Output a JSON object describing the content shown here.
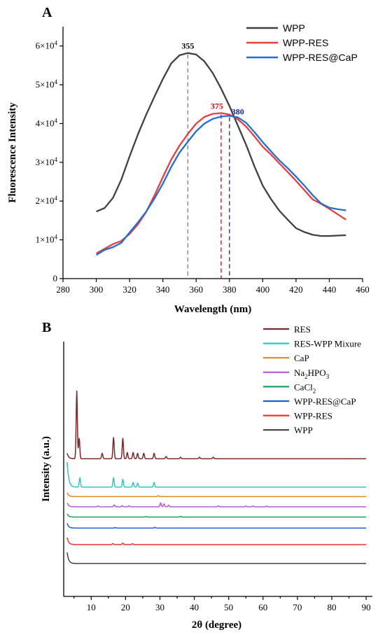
{
  "chart_data": [
    {
      "panel": "A",
      "type": "line",
      "xlabel": "Wavelength (nm)",
      "ylabel": "Fluorescence Intensity",
      "xlim": [
        280,
        460
      ],
      "ylim": [
        0,
        65000
      ],
      "xticks": [
        "280",
        "300",
        "320",
        "340",
        "360",
        "380",
        "400",
        "420",
        "440",
        "460"
      ],
      "yticks": [
        {
          "value": 0,
          "mant": "0",
          "exp": ""
        },
        {
          "value": 10000,
          "mant": "1×10",
          "exp": "4"
        },
        {
          "value": 20000,
          "mant": "2×10",
          "exp": "4"
        },
        {
          "value": 30000,
          "mant": "3×10",
          "exp": "4"
        },
        {
          "value": 40000,
          "mant": "4×10",
          "exp": "4"
        },
        {
          "value": 50000,
          "mant": "5×10",
          "exp": "4"
        },
        {
          "value": 60000,
          "mant": "6×10",
          "exp": "4"
        }
      ],
      "legend_position": "top-right",
      "series": [
        {
          "name": "WPP",
          "color": "#404040",
          "x": [
            300,
            305,
            310,
            315,
            320,
            325,
            330,
            335,
            340,
            345,
            350,
            355,
            360,
            365,
            370,
            375,
            380,
            385,
            390,
            395,
            400,
            405,
            410,
            415,
            420,
            425,
            430,
            435,
            440,
            445,
            450
          ],
          "y": [
            17300,
            18200,
            20800,
            25500,
            31500,
            37200,
            42300,
            47000,
            51500,
            55500,
            57600,
            58200,
            57800,
            56000,
            53000,
            49000,
            44500,
            39500,
            34500,
            29000,
            24000,
            20500,
            17500,
            15200,
            13000,
            12000,
            11300,
            11000,
            11000,
            11100,
            11200
          ]
        },
        {
          "name": "WPP-RES",
          "color": "#ee3b3b",
          "x": [
            300,
            305,
            310,
            315,
            320,
            325,
            330,
            335,
            340,
            345,
            350,
            355,
            360,
            365,
            370,
            375,
            380,
            385,
            390,
            395,
            400,
            405,
            410,
            415,
            420,
            425,
            430,
            435,
            440,
            445,
            450
          ],
          "y": [
            6500,
            7700,
            8900,
            9700,
            11500,
            14000,
            17200,
            21500,
            26200,
            30700,
            34300,
            37300,
            40000,
            41700,
            42500,
            42700,
            42300,
            41100,
            39200,
            36700,
            34000,
            32000,
            29700,
            27500,
            25200,
            22800,
            20400,
            19300,
            18000,
            16600,
            15200
          ]
        },
        {
          "name": "WPP-RES@CaP",
          "color": "#1f6fd6",
          "x": [
            300,
            305,
            310,
            315,
            320,
            325,
            330,
            335,
            340,
            345,
            350,
            355,
            360,
            365,
            370,
            375,
            380,
            385,
            390,
            395,
            400,
            405,
            410,
            415,
            420,
            425,
            430,
            435,
            440,
            445,
            450
          ],
          "y": [
            6100,
            7400,
            8100,
            9200,
            11900,
            14500,
            17300,
            20700,
            24500,
            28800,
            32500,
            35300,
            38000,
            40000,
            41200,
            41800,
            42000,
            41600,
            40200,
            37800,
            35200,
            32800,
            30500,
            28500,
            26300,
            24000,
            21500,
            19400,
            18300,
            17900,
            17600
          ]
        }
      ],
      "peaks": [
        {
          "x": 355,
          "label": "355",
          "color": "#808080",
          "y": 58200
        },
        {
          "x": 375,
          "label": "375",
          "color": "#d4000f",
          "y": 42700
        },
        {
          "x": 380,
          "label": "380",
          "color": "#1028a8",
          "y": 42000
        }
      ]
    },
    {
      "panel": "B",
      "type": "line",
      "xlabel": "2θ (degree)",
      "ylabel": "Intensity (a.u.)",
      "xlim": [
        2,
        91
      ],
      "xticks": [
        "10",
        "20",
        "30",
        "40",
        "50",
        "60",
        "70",
        "80",
        "90"
      ],
      "legend_position": "top-right",
      "series": [
        {
          "name": "RES",
          "color": "#7a2828",
          "offset": 9.0,
          "peaks": [
            [
              3.0,
              0.35
            ],
            [
              5.8,
              4.3
            ],
            [
              6.5,
              1.3
            ],
            [
              13.2,
              0.35
            ],
            [
              16.5,
              1.35
            ],
            [
              19.2,
              1.3
            ],
            [
              20.5,
              0.4
            ],
            [
              22.2,
              0.4
            ],
            [
              23.5,
              0.35
            ],
            [
              25.3,
              0.35
            ],
            [
              28.3,
              0.35
            ],
            [
              31.8,
              0.15
            ],
            [
              36,
              0.1
            ],
            [
              41.5,
              0.1
            ],
            [
              45.5,
              0.1
            ]
          ]
        },
        {
          "name": "RES-WPP Mixure",
          "color": "#2ec7c3",
          "offset": 7.2,
          "peaks": [
            [
              3.0,
              1.6
            ],
            [
              6.7,
              0.6
            ],
            [
              16.5,
              0.6
            ],
            [
              19.2,
              0.5
            ],
            [
              22.2,
              0.3
            ],
            [
              23.5,
              0.25
            ],
            [
              28.3,
              0.3
            ]
          ]
        },
        {
          "name": "CaP",
          "color": "#e08a1a",
          "offset": 6.6,
          "peaks": [
            [
              3.0,
              0.25
            ],
            [
              29.5,
              0.06
            ]
          ]
        },
        {
          "name": "Na",
          "sub": "2",
          "tail": "HPO",
          "sub2": "3",
          "color": "#b45ad8",
          "offset": 5.95,
          "peaks": [
            [
              3.0,
              0.25
            ],
            [
              12,
              0.05
            ],
            [
              16.7,
              0.12
            ],
            [
              19,
              0.07
            ],
            [
              21,
              0.07
            ],
            [
              30.2,
              0.25
            ],
            [
              31.2,
              0.18
            ],
            [
              32.5,
              0.1
            ],
            [
              47,
              0.06
            ],
            [
              55,
              0.05
            ],
            [
              57,
              0.05
            ],
            [
              61,
              0.04
            ]
          ]
        },
        {
          "name": "CaCl",
          "sub": "2",
          "color": "#1ba35e",
          "offset": 5.3,
          "peaks": [
            [
              3.0,
              0.2
            ],
            [
              26,
              0.04
            ],
            [
              36,
              0.05
            ]
          ]
        },
        {
          "name": "WPP-RES@CaP",
          "color": "#1f5fd1",
          "offset": 4.6,
          "peaks": [
            [
              3.0,
              0.3
            ],
            [
              17,
              0.04
            ],
            [
              28.5,
              0.05
            ]
          ]
        },
        {
          "name": "WPP-RES",
          "color": "#ec3434",
          "offset": 3.55,
          "peaks": [
            [
              3.0,
              0.45
            ],
            [
              16.3,
              0.07
            ],
            [
              19.2,
              0.1
            ],
            [
              22,
              0.06
            ]
          ]
        },
        {
          "name": "WPP",
          "color": "#404040",
          "offset": 2.35,
          "peaks": [
            [
              3.0,
              0.7
            ]
          ]
        }
      ]
    }
  ]
}
